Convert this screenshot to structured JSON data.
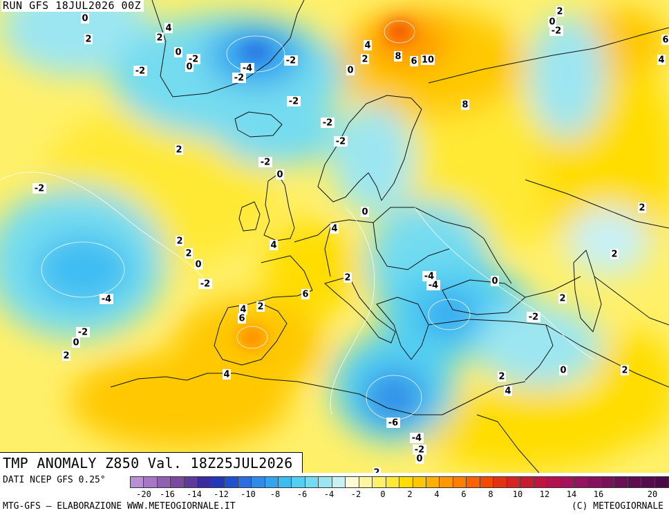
{
  "header": {
    "run_label": "RUN GFS 18JUL2026 00Z"
  },
  "title": "TMP ANOMALY Z850 Val. 18Z25JUL2026",
  "footer": {
    "source": "DATI NCEP GFS 0.25°",
    "credit": "MTG-GFS – ELABORAZIONE WWW.METEOGIORNALE.IT",
    "copyright": "(C) METEOGIORNALE"
  },
  "colorbar": {
    "colors": [
      "#b98fd6",
      "#a577c6",
      "#9160b3",
      "#7b489f",
      "#5e3a9a",
      "#3a2c9e",
      "#2238b8",
      "#1f52d0",
      "#2a6ee0",
      "#2f8be8",
      "#33a4ef",
      "#3dbcf2",
      "#52cff2",
      "#74dcf0",
      "#9ce6f2",
      "#c8f1f6",
      "#fffbd6",
      "#fff5a0",
      "#fff06a",
      "#ffe936",
      "#ffdd00",
      "#ffc800",
      "#ffb000",
      "#ff9800",
      "#ff7e00",
      "#fd6200",
      "#f24a00",
      "#e33210",
      "#d42522",
      "#c91b30",
      "#bd1440",
      "#b21350",
      "#a4135c",
      "#94135e",
      "#86115c",
      "#78105a",
      "#6a0f55",
      "#5f0d50",
      "#550c4b",
      "#4c0b46"
    ],
    "ticks": [
      "-20",
      "-16",
      "-14",
      "-12",
      "-10",
      "-8",
      "-6",
      "-4",
      "-2",
      "0",
      "2",
      "4",
      "6",
      "8",
      "10",
      "12",
      "14",
      "16",
      "20"
    ]
  },
  "contour_labels": [
    {
      "text": "0"
    },
    {
      "text": "2"
    },
    {
      "text": "4"
    },
    {
      "text": "2"
    },
    {
      "text": "0"
    },
    {
      "text": "-2"
    },
    {
      "text": "-2"
    },
    {
      "text": "0"
    },
    {
      "text": "-4"
    },
    {
      "text": "-2"
    },
    {
      "text": "-2"
    },
    {
      "text": "0"
    },
    {
      "text": "4"
    },
    {
      "text": "2"
    },
    {
      "text": "8"
    },
    {
      "text": "6"
    },
    {
      "text": "10"
    },
    {
      "text": "-2"
    },
    {
      "text": "8"
    },
    {
      "text": "-2"
    },
    {
      "text": "-2"
    },
    {
      "text": "2"
    },
    {
      "text": "-2"
    },
    {
      "text": "0"
    },
    {
      "text": "-2"
    },
    {
      "text": "0"
    },
    {
      "text": "4"
    },
    {
      "text": "2"
    },
    {
      "text": "4"
    },
    {
      "text": "2"
    },
    {
      "text": "0"
    },
    {
      "text": "-2"
    },
    {
      "text": "-4"
    },
    {
      "text": "2"
    },
    {
      "text": "4"
    },
    {
      "text": "6"
    },
    {
      "text": "6"
    },
    {
      "text": "-2"
    },
    {
      "text": "0"
    },
    {
      "text": "2"
    },
    {
      "text": "-4"
    },
    {
      "text": "-4"
    },
    {
      "text": "2"
    },
    {
      "text": "0"
    },
    {
      "text": "2"
    },
    {
      "text": "-2"
    },
    {
      "text": "2"
    },
    {
      "text": "2"
    },
    {
      "text": "4"
    },
    {
      "text": "2"
    },
    {
      "text": "4"
    },
    {
      "text": "0"
    },
    {
      "text": "2"
    },
    {
      "text": "-6"
    },
    {
      "text": "-4"
    },
    {
      "text": "-2"
    },
    {
      "text": "0"
    },
    {
      "text": "2"
    },
    {
      "text": "0"
    },
    {
      "text": "-2"
    },
    {
      "text": "6"
    },
    {
      "text": "4"
    },
    {
      "text": "2"
    }
  ]
}
